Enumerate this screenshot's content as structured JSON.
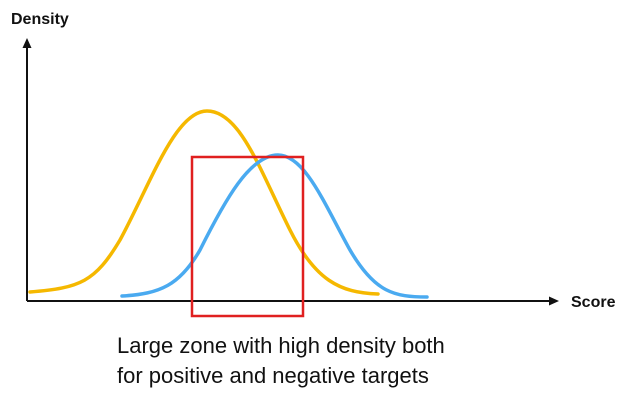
{
  "axes": {
    "y_label": "Density",
    "x_label": "Score"
  },
  "caption": {
    "lines": [
      "Large zone with high density both",
      "for positive and negative targets"
    ]
  }
}
